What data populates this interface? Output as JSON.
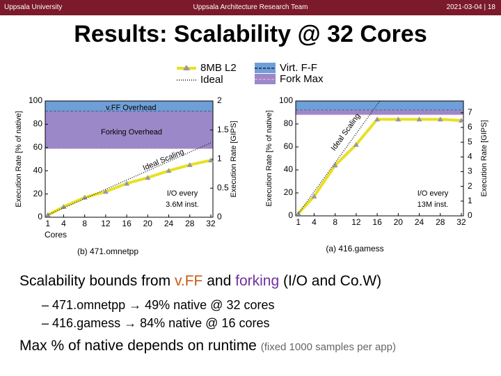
{
  "header": {
    "left": "Uppsala University",
    "center": "Uppsala Architecture Research Team",
    "right": "2021-03-04 | 18"
  },
  "title": "Results: Scalability @ 32 Cores",
  "legend": {
    "items": [
      {
        "name": "8MB L2",
        "color": "#e8e020"
      },
      {
        "name": "Ideal",
        "color": "#444444"
      },
      {
        "name": "Virt. F-F",
        "color": "#6f9fd8"
      },
      {
        "name": "Fork Max",
        "color": "#9b88c9"
      }
    ]
  },
  "chart_data": [
    {
      "type": "line",
      "caption": "(b) 471.omnetpp",
      "xlabel": "Cores",
      "ylabel": "Execution Rate [% of native]",
      "y2label": "Execution Rate [GIPS]",
      "xlim": [
        0.5,
        32.4
      ],
      "xticks": [
        1,
        4,
        8,
        12,
        16,
        20,
        24,
        28,
        32
      ],
      "ylim": [
        0,
        100
      ],
      "yticks": [
        0,
        20,
        40,
        60,
        80,
        100
      ],
      "y2lim": [
        0,
        2
      ],
      "y2ticks": [
        0,
        0.5,
        1,
        1.5,
        2
      ],
      "bands": [
        {
          "from": 91,
          "to": 100,
          "color": "#6f9fd8"
        },
        {
          "from": 59,
          "to": 91,
          "color": "#9b88c9"
        }
      ],
      "series": [
        {
          "x": [
            1,
            4,
            8,
            12,
            16,
            20,
            24,
            28,
            32
          ],
          "values": [
            2,
            9,
            17,
            22,
            29,
            34,
            40,
            45,
            49
          ],
          "color": "#e8e020"
        },
        {
          "x": [
            1,
            32
          ],
          "values": [
            2,
            64
          ],
          "color": "#222222"
        }
      ],
      "annotations": [
        "v.FF Overhead",
        "Forking Overhead",
        "Ideal Scaling",
        "I/O every",
        "3.6M inst."
      ]
    },
    {
      "type": "line",
      "caption": "(a) 416.gamess",
      "ylabel": "Execution Rate [% of native]",
      "y2label": "Execution Rate [GIPS]",
      "xlim": [
        0.5,
        32.4
      ],
      "xticks": [
        1,
        4,
        8,
        12,
        16,
        20,
        24,
        28,
        32
      ],
      "ylim": [
        0,
        100
      ],
      "yticks": [
        0,
        20,
        40,
        60,
        80,
        100
      ],
      "y2lim": [
        0,
        7.8
      ],
      "y2ticks": [
        0,
        1,
        2,
        3,
        4,
        5,
        6,
        7
      ],
      "bands": [
        {
          "from": 92,
          "to": 100,
          "color": "#6f9fd8"
        },
        {
          "from": 88,
          "to": 92,
          "color": "#9b88c9"
        }
      ],
      "series": [
        {
          "x": [
            1,
            4,
            8,
            12,
            16,
            20,
            24,
            28,
            32
          ],
          "values": [
            2,
            17,
            44,
            62,
            84,
            84,
            84,
            84,
            83
          ],
          "color": "#e8e020"
        },
        {
          "x": [
            1,
            16.5
          ],
          "values": [
            2,
            100
          ],
          "color": "#222222"
        }
      ],
      "annotations": [
        "Ideal Scaling",
        "I/O every",
        "13M inst."
      ]
    }
  ],
  "bullets": [
    {
      "parts": [
        "Scalability bounds from ",
        "v.FF",
        " and ",
        "forking",
        " (I/O and Co.W)"
      ]
    },
    {
      "marker": "–",
      "text": "471.omnetpp → 49% native @ 32 cores"
    },
    {
      "marker": "–",
      "text": "416.gamess → 84% native @ 16 cores"
    },
    {
      "parts": [
        "Max % of native depends on runtime ",
        "(fixed 1000 samples per app)"
      ]
    }
  ]
}
